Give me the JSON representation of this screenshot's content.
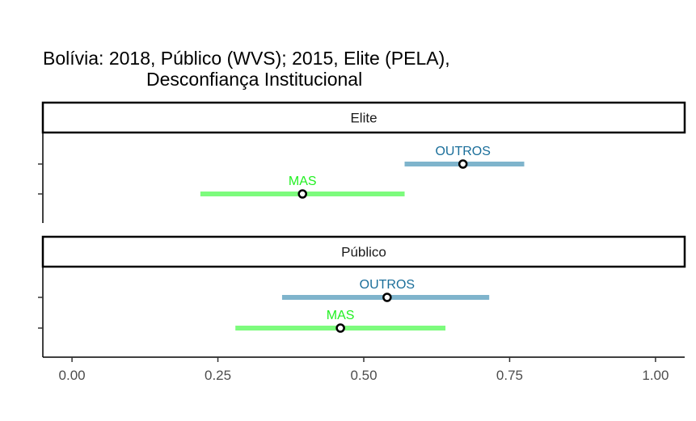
{
  "chart_data": {
    "type": "errorbar",
    "title_lines": [
      "Bolívia: 2018, Público (WVS); 2015, Elite (PELA),",
      "Desconfiança Institucional"
    ],
    "xlabel": "",
    "ylabel": "",
    "xlim": [
      -0.05,
      1.05
    ],
    "x_ticks": [
      0.0,
      0.25,
      0.5,
      0.75,
      1.0
    ],
    "x_tick_labels": [
      "0.00",
      "0.25",
      "0.50",
      "0.75",
      "1.00"
    ],
    "grid": false,
    "colors": {
      "OUTROS": "#7fb4cc",
      "OUTROS_label": "#1a6e9a",
      "MAS": "#7dfb7d",
      "MAS_label": "#22f022"
    },
    "panels": [
      {
        "name": "Elite",
        "points": [
          {
            "label": "OUTROS",
            "estimate": 0.67,
            "low": 0.57,
            "high": 0.775
          },
          {
            "label": "MAS",
            "estimate": 0.395,
            "low": 0.22,
            "high": 0.57
          }
        ]
      },
      {
        "name": "Público",
        "points": [
          {
            "label": "OUTROS",
            "estimate": 0.54,
            "low": 0.36,
            "high": 0.715
          },
          {
            "label": "MAS",
            "estimate": 0.46,
            "low": 0.28,
            "high": 0.64
          }
        ]
      }
    ]
  }
}
